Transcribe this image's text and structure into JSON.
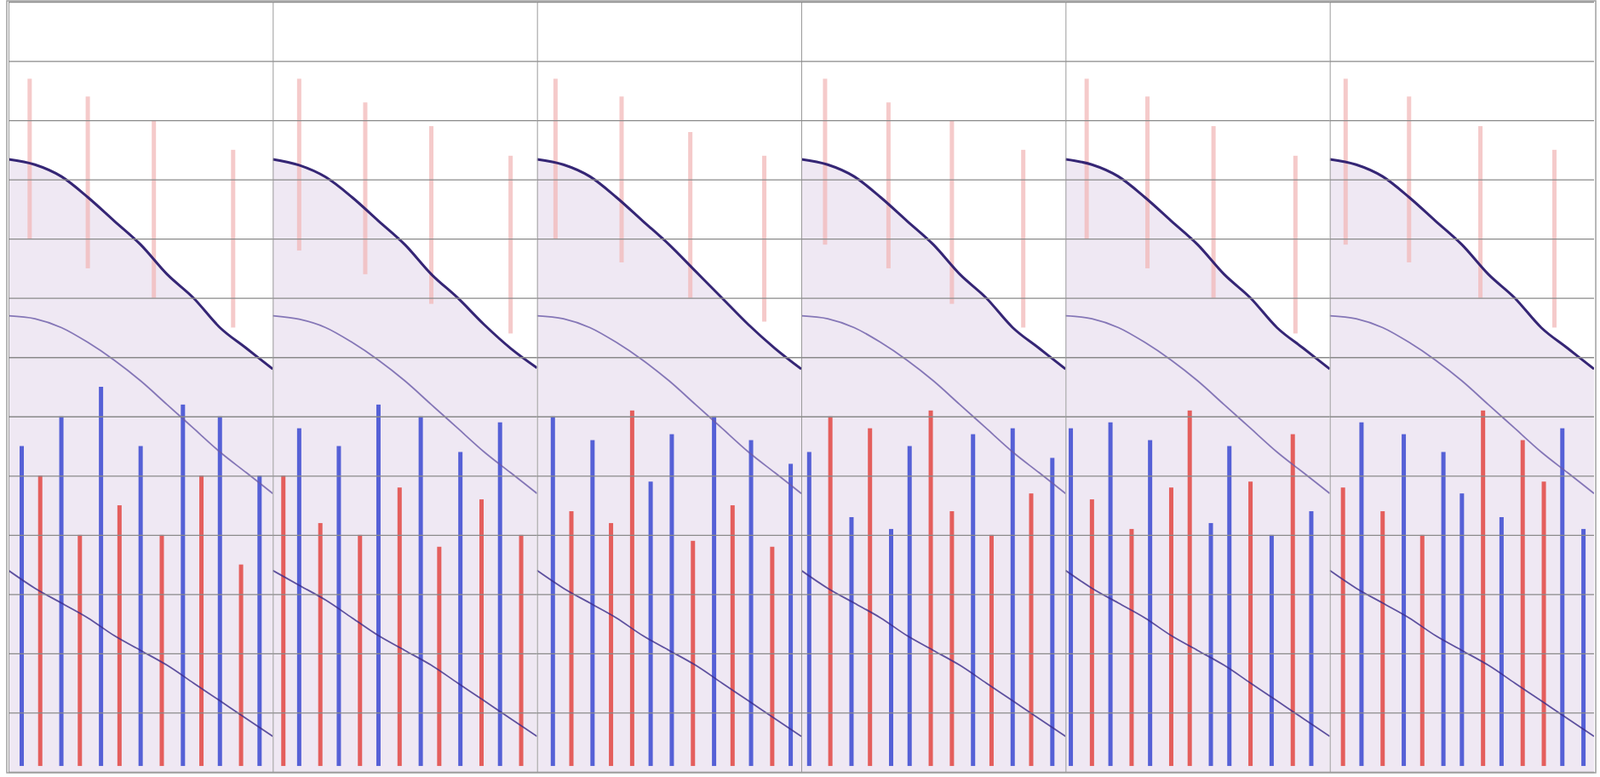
{
  "chart_data": [
    {
      "type": "seismic",
      "xlim": [
        0,
        1
      ],
      "ylim": [
        0,
        13
      ],
      "xticks": [
        0,
        1
      ],
      "yticks": [
        0,
        1,
        2,
        3,
        4,
        5,
        6,
        7,
        8,
        9,
        10,
        11,
        12,
        13
      ],
      "grid": true,
      "tick_labels": false,
      "x": [
        0,
        0.1,
        0.2,
        0.3,
        0.4,
        0.5,
        0.6,
        0.7,
        0.8,
        0.9,
        1
      ],
      "series": [
        {
          "color": "#2a1a6e",
          "values": [
            2.66,
            2.75,
            2.95,
            3.3,
            3.7,
            4.1,
            4.6,
            5.0,
            5.5,
            5.85,
            6.2
          ]
        },
        {
          "color": "#6a5aa8",
          "values": [
            5.3,
            5.35,
            5.5,
            5.75,
            6.05,
            6.4,
            6.8,
            7.2,
            7.6,
            7.95,
            8.3
          ]
        },
        {
          "color": "#3a2a8a",
          "values": [
            9.6,
            9.9,
            10.15,
            10.4,
            10.7,
            10.95,
            11.2,
            11.5,
            11.8,
            12.1,
            12.4
          ]
        }
      ],
      "stripes": {
        "x": [
          0.05,
          0.12,
          0.2,
          0.27,
          0.35,
          0.42,
          0.5,
          0.58,
          0.66,
          0.73,
          0.8,
          0.88,
          0.95,
          0.08,
          0.3,
          0.55,
          0.85
        ],
        "y0": [
          7.5,
          8,
          7,
          9,
          6.5,
          8.5,
          7.5,
          9,
          6.8,
          8,
          7,
          9.5,
          8,
          1.3,
          1.6,
          2,
          2.5
        ],
        "y1": [
          12.9,
          12.9,
          12.9,
          12.9,
          12.9,
          12.9,
          12.9,
          12.9,
          12.9,
          12.9,
          12.9,
          12.9,
          12.9,
          4,
          4.5,
          5,
          5.5
        ],
        "colors": [
          "#2233cc",
          "#e0302a",
          "#2233cc",
          "#e0302a",
          "#2233cc",
          "#e0302a",
          "#2233cc",
          "#e0302a",
          "#2233cc",
          "#e0302a",
          "#2233cc",
          "#e0302a",
          "#2233cc",
          "#f2b8b8",
          "#f2b8b8",
          "#f2b8b8",
          "#f2b8b8"
        ]
      }
    },
    {
      "type": "seismic",
      "xlim": [
        0,
        1
      ],
      "ylim": [
        0,
        13
      ],
      "xticks": [
        0,
        1
      ],
      "yticks": [
        0,
        1,
        2,
        3,
        4,
        5,
        6,
        7,
        8,
        9,
        10,
        11,
        12,
        13
      ],
      "grid": true,
      "tick_labels": false,
      "x": [
        0,
        0.1,
        0.2,
        0.3,
        0.4,
        0.5,
        0.6,
        0.7,
        0.8,
        0.9,
        1
      ],
      "series": [
        {
          "color": "#2a1a6e",
          "values": [
            2.66,
            2.76,
            2.96,
            3.3,
            3.7,
            4.1,
            4.6,
            5.0,
            5.45,
            5.85,
            6.18
          ]
        },
        {
          "color": "#6a5aa8",
          "values": [
            5.3,
            5.36,
            5.5,
            5.75,
            6.05,
            6.4,
            6.8,
            7.2,
            7.6,
            7.95,
            8.3
          ]
        },
        {
          "color": "#3a2a8a",
          "values": [
            9.6,
            9.85,
            10.1,
            10.4,
            10.7,
            10.95,
            11.2,
            11.5,
            11.8,
            12.1,
            12.4
          ]
        }
      ],
      "stripes": {
        "x": [
          0.04,
          0.1,
          0.18,
          0.25,
          0.33,
          0.4,
          0.48,
          0.56,
          0.63,
          0.71,
          0.79,
          0.86,
          0.94,
          0.1,
          0.35,
          0.6,
          0.9
        ],
        "y0": [
          8,
          7.2,
          8.8,
          7.5,
          9,
          6.8,
          8.2,
          7,
          9.2,
          7.6,
          8.4,
          7.1,
          9,
          1.3,
          1.7,
          2.1,
          2.6
        ],
        "y1": [
          12.9,
          12.9,
          12.9,
          12.9,
          12.9,
          12.9,
          12.9,
          12.9,
          12.9,
          12.9,
          12.9,
          12.9,
          12.9,
          4.2,
          4.6,
          5.1,
          5.6
        ],
        "colors": [
          "#e0302a",
          "#2233cc",
          "#e0302a",
          "#2233cc",
          "#e0302a",
          "#2233cc",
          "#e0302a",
          "#2233cc",
          "#e0302a",
          "#2233cc",
          "#e0302a",
          "#2233cc",
          "#e0302a",
          "#f2b8b8",
          "#f2b8b8",
          "#f2b8b8",
          "#f2b8b8"
        ]
      }
    },
    {
      "type": "seismic",
      "xlim": [
        0,
        1
      ],
      "ylim": [
        0,
        13
      ],
      "xticks": [
        0,
        1
      ],
      "yticks": [
        0,
        1,
        2,
        3,
        4,
        5,
        6,
        7,
        8,
        9,
        10,
        11,
        12,
        13
      ],
      "grid": true,
      "tick_labels": false,
      "x": [
        0,
        0.1,
        0.2,
        0.3,
        0.4,
        0.5,
        0.6,
        0.7,
        0.8,
        0.9,
        1
      ],
      "series": [
        {
          "color": "#2a1a6e",
          "values": [
            2.66,
            2.75,
            2.95,
            3.3,
            3.7,
            4.1,
            4.55,
            5.0,
            5.45,
            5.85,
            6.2
          ]
        },
        {
          "color": "#6a5aa8",
          "values": [
            5.3,
            5.35,
            5.5,
            5.75,
            6.05,
            6.4,
            6.8,
            7.2,
            7.6,
            7.95,
            8.3
          ]
        },
        {
          "color": "#3a2a8a",
          "values": [
            9.6,
            9.9,
            10.15,
            10.4,
            10.7,
            10.95,
            11.2,
            11.5,
            11.8,
            12.1,
            12.4
          ]
        }
      ],
      "stripes": {
        "x": [
          0.06,
          0.13,
          0.21,
          0.28,
          0.36,
          0.43,
          0.51,
          0.59,
          0.67,
          0.74,
          0.81,
          0.89,
          0.96,
          0.07,
          0.32,
          0.58,
          0.86
        ],
        "y0": [
          7,
          8.6,
          7.4,
          8.8,
          6.9,
          8.1,
          7.3,
          9.1,
          7,
          8.5,
          7.4,
          9.2,
          7.8,
          1.3,
          1.6,
          2.2,
          2.6
        ],
        "y1": [
          12.9,
          12.9,
          12.9,
          12.9,
          12.9,
          12.9,
          12.9,
          12.9,
          12.9,
          12.9,
          12.9,
          12.9,
          12.9,
          4,
          4.4,
          5,
          5.4
        ],
        "colors": [
          "#2233cc",
          "#e0302a",
          "#2233cc",
          "#e0302a",
          "#e0302a",
          "#2233cc",
          "#2233cc",
          "#e0302a",
          "#2233cc",
          "#e0302a",
          "#2233cc",
          "#e0302a",
          "#2233cc",
          "#f2b8b8",
          "#f2b8b8",
          "#f2b8b8",
          "#f2b8b8"
        ]
      }
    },
    {
      "type": "seismic",
      "xlim": [
        0,
        1
      ],
      "ylim": [
        0,
        13
      ],
      "xticks": [
        0,
        1
      ],
      "yticks": [
        0,
        1,
        2,
        3,
        4,
        5,
        6,
        7,
        8,
        9,
        10,
        11,
        12,
        13
      ],
      "grid": true,
      "tick_labels": false,
      "x": [
        0,
        0.1,
        0.2,
        0.3,
        0.4,
        0.5,
        0.6,
        0.7,
        0.8,
        0.9,
        1
      ],
      "series": [
        {
          "color": "#2a1a6e",
          "values": [
            2.66,
            2.75,
            2.95,
            3.3,
            3.7,
            4.1,
            4.6,
            5.0,
            5.5,
            5.85,
            6.2
          ]
        },
        {
          "color": "#6a5aa8",
          "values": [
            5.3,
            5.35,
            5.5,
            5.75,
            6.05,
            6.4,
            6.8,
            7.2,
            7.6,
            7.95,
            8.3
          ]
        },
        {
          "color": "#3a2a8a",
          "values": [
            9.6,
            9.9,
            10.15,
            10.4,
            10.7,
            10.95,
            11.2,
            11.5,
            11.8,
            12.1,
            12.4
          ]
        }
      ],
      "stripes": {
        "x": [
          0.03,
          0.11,
          0.19,
          0.26,
          0.34,
          0.41,
          0.49,
          0.57,
          0.65,
          0.72,
          0.8,
          0.87,
          0.95,
          0.09,
          0.33,
          0.57,
          0.84
        ],
        "y0": [
          7.6,
          7,
          8.7,
          7.2,
          8.9,
          7.5,
          6.9,
          8.6,
          7.3,
          9,
          7.2,
          8.3,
          7.7,
          1.3,
          1.7,
          2,
          2.5
        ],
        "y1": [
          12.9,
          12.9,
          12.9,
          12.9,
          12.9,
          12.9,
          12.9,
          12.9,
          12.9,
          12.9,
          12.9,
          12.9,
          12.9,
          4.1,
          4.5,
          5.1,
          5.5
        ],
        "colors": [
          "#2233cc",
          "#e0302a",
          "#2233cc",
          "#e0302a",
          "#2233cc",
          "#2233cc",
          "#e0302a",
          "#e0302a",
          "#2233cc",
          "#e0302a",
          "#2233cc",
          "#e0302a",
          "#2233cc",
          "#f2b8b8",
          "#f2b8b8",
          "#f2b8b8",
          "#f2b8b8"
        ]
      }
    },
    {
      "type": "seismic",
      "xlim": [
        0,
        1
      ],
      "ylim": [
        0,
        13
      ],
      "xticks": [
        0,
        1
      ],
      "yticks": [
        0,
        1,
        2,
        3,
        4,
        5,
        6,
        7,
        8,
        9,
        10,
        11,
        12,
        13
      ],
      "grid": true,
      "tick_labels": false,
      "x": [
        0,
        0.1,
        0.2,
        0.3,
        0.4,
        0.5,
        0.6,
        0.7,
        0.8,
        0.9,
        1
      ],
      "series": [
        {
          "color": "#2a1a6e",
          "values": [
            2.66,
            2.75,
            2.95,
            3.3,
            3.7,
            4.1,
            4.6,
            5.0,
            5.5,
            5.85,
            6.2
          ]
        },
        {
          "color": "#6a5aa8",
          "values": [
            5.3,
            5.35,
            5.5,
            5.75,
            6.05,
            6.4,
            6.8,
            7.2,
            7.6,
            7.95,
            8.3
          ]
        },
        {
          "color": "#3a2a8a",
          "values": [
            9.6,
            9.9,
            10.15,
            10.4,
            10.7,
            10.95,
            11.2,
            11.5,
            11.8,
            12.1,
            12.4
          ]
        }
      ],
      "stripes": {
        "x": [
          0.02,
          0.1,
          0.17,
          0.25,
          0.32,
          0.4,
          0.47,
          0.55,
          0.62,
          0.7,
          0.78,
          0.86,
          0.93,
          0.08,
          0.31,
          0.56,
          0.87
        ],
        "y0": [
          7.2,
          8.4,
          7.1,
          8.9,
          7.4,
          8.2,
          6.9,
          8.8,
          7.5,
          8.1,
          9,
          7.3,
          8.6,
          1.3,
          1.6,
          2.1,
          2.6
        ],
        "y1": [
          12.9,
          12.9,
          12.9,
          12.9,
          12.9,
          12.9,
          12.9,
          12.9,
          12.9,
          12.9,
          12.9,
          12.9,
          12.9,
          4,
          4.5,
          5,
          5.6
        ],
        "colors": [
          "#2233cc",
          "#e0302a",
          "#2233cc",
          "#e0302a",
          "#2233cc",
          "#e0302a",
          "#e0302a",
          "#2233cc",
          "#2233cc",
          "#e0302a",
          "#2233cc",
          "#e0302a",
          "#2233cc",
          "#f2b8b8",
          "#f2b8b8",
          "#f2b8b8",
          "#f2b8b8"
        ]
      }
    },
    {
      "type": "seismic",
      "xlim": [
        0,
        1
      ],
      "ylim": [
        0,
        13
      ],
      "xticks": [
        0,
        1
      ],
      "yticks": [
        0,
        1,
        2,
        3,
        4,
        5,
        6,
        7,
        8,
        9,
        10,
        11,
        12,
        13
      ],
      "grid": true,
      "tick_labels": false,
      "x": [
        0,
        0.1,
        0.2,
        0.3,
        0.4,
        0.5,
        0.6,
        0.7,
        0.8,
        0.9,
        1
      ],
      "series": [
        {
          "color": "#2a1a6e",
          "values": [
            2.66,
            2.75,
            2.95,
            3.3,
            3.7,
            4.1,
            4.6,
            5.0,
            5.5,
            5.85,
            6.2
          ]
        },
        {
          "color": "#6a5aa8",
          "values": [
            5.3,
            5.35,
            5.5,
            5.75,
            6.05,
            6.4,
            6.8,
            7.2,
            7.6,
            7.95,
            8.3
          ]
        },
        {
          "color": "#3a2a8a",
          "values": [
            9.6,
            9.9,
            10.15,
            10.4,
            10.7,
            10.95,
            11.2,
            11.5,
            11.8,
            12.1,
            12.4
          ]
        }
      ],
      "stripes": {
        "x": [
          0.05,
          0.12,
          0.2,
          0.28,
          0.35,
          0.43,
          0.5,
          0.58,
          0.65,
          0.73,
          0.81,
          0.88,
          0.96,
          0.06,
          0.3,
          0.57,
          0.85
        ],
        "y0": [
          8.2,
          7.1,
          8.6,
          7.3,
          9,
          7.6,
          8.3,
          6.9,
          8.7,
          7.4,
          8.1,
          7.2,
          8.9,
          1.3,
          1.6,
          2.1,
          2.5
        ],
        "y1": [
          12.9,
          12.9,
          12.9,
          12.9,
          12.9,
          12.9,
          12.9,
          12.9,
          12.9,
          12.9,
          12.9,
          12.9,
          12.9,
          4.1,
          4.4,
          5,
          5.5
        ],
        "colors": [
          "#e0302a",
          "#2233cc",
          "#e0302a",
          "#2233cc",
          "#e0302a",
          "#2233cc",
          "#2233cc",
          "#e0302a",
          "#2233cc",
          "#e0302a",
          "#e0302a",
          "#2233cc",
          "#2233cc",
          "#f2b8b8",
          "#f2b8b8",
          "#f2b8b8",
          "#f2b8b8"
        ]
      }
    }
  ]
}
